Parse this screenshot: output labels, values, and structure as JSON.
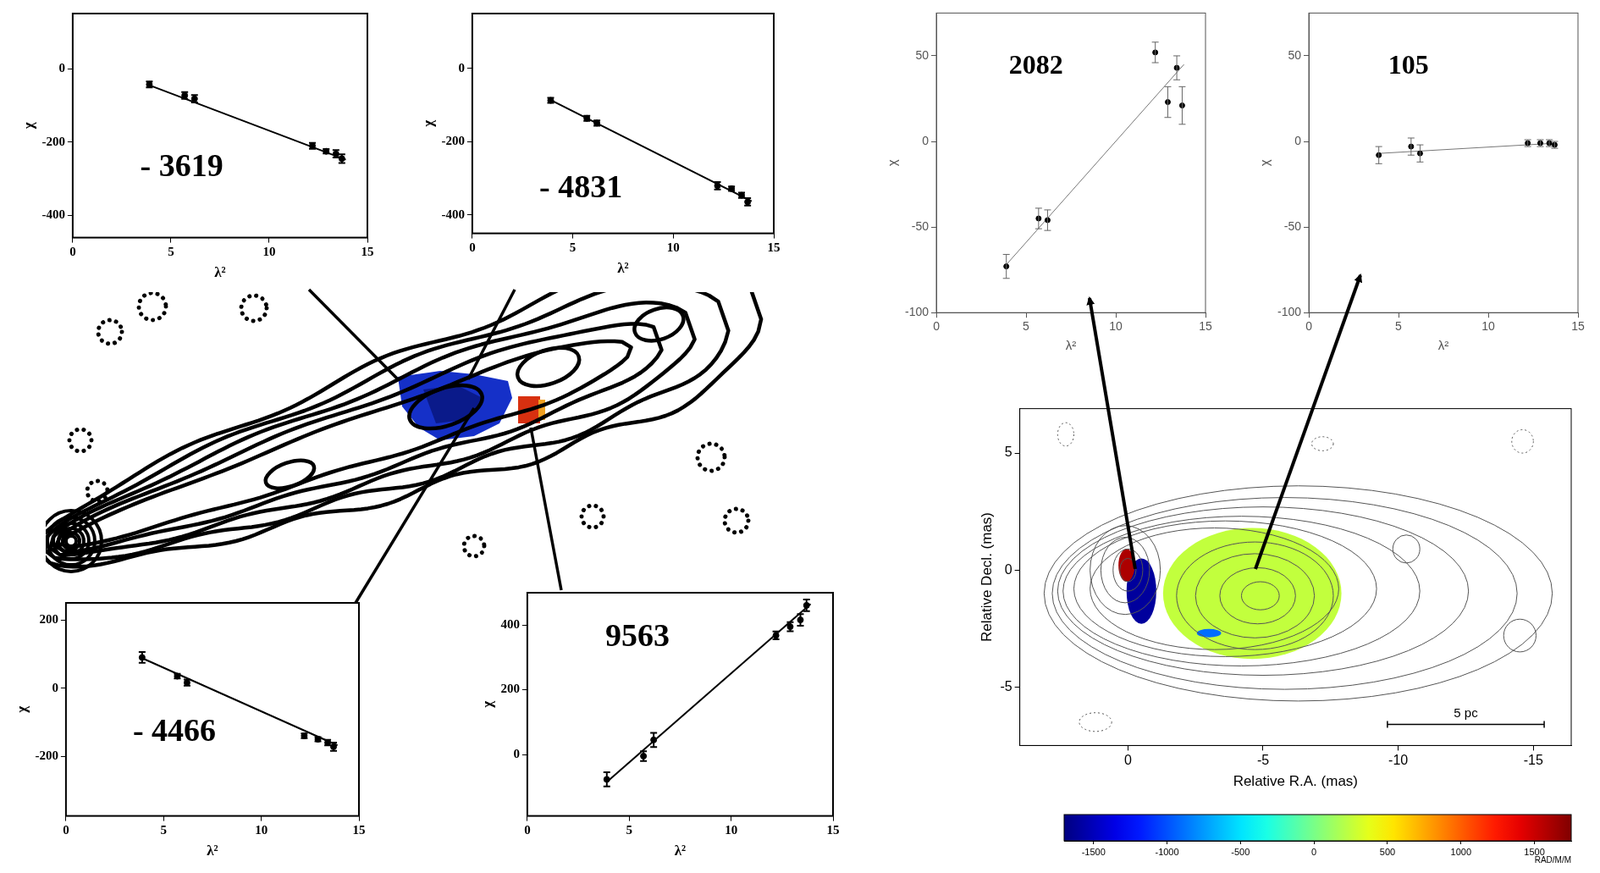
{
  "chart_data": [
    {
      "type": "scatter",
      "annotation": "- 3619",
      "xlabel": "λ²",
      "ylabel": "χ",
      "x": [
        3.9,
        5.7,
        6.2,
        12.2,
        12.9,
        13.4,
        13.7
      ],
      "values": [
        -43,
        -73,
        -82,
        -210,
        -225,
        -232,
        -245
      ],
      "errors": [
        8,
        9,
        10,
        8,
        6,
        10,
        12
      ],
      "fit": {
        "x": [
          3.9,
          13.9
        ],
        "values": [
          -45,
          -248
        ]
      },
      "xlim": [
        0,
        15
      ],
      "xticks": [
        0,
        5,
        10,
        15
      ],
      "ylim": [
        -460,
        150
      ],
      "yticks": [
        -400,
        -200,
        0
      ],
      "grid": false,
      "color": "#000000"
    },
    {
      "type": "scatter",
      "annotation": "- 4831",
      "xlabel": "λ²",
      "ylabel": "χ",
      "x": [
        3.9,
        5.7,
        6.2,
        12.2,
        12.9,
        13.4,
        13.7
      ],
      "values": [
        -87,
        -136,
        -149,
        -320,
        -328,
        -346,
        -364
      ],
      "errors": [
        7,
        7,
        7,
        10,
        6,
        7,
        10
      ],
      "fit": {
        "x": [
          3.9,
          13.9
        ],
        "values": [
          -86,
          -362
        ]
      },
      "xlim": [
        0,
        15
      ],
      "xticks": [
        0,
        5,
        10,
        15
      ],
      "ylim": [
        -450,
        150
      ],
      "yticks": [
        -400,
        -200,
        0
      ],
      "grid": false,
      "color": "#000000"
    },
    {
      "type": "scatter",
      "annotation": "- 4466",
      "xlabel": "λ²",
      "ylabel": "χ",
      "x": [
        3.9,
        5.7,
        6.2,
        12.2,
        12.9,
        13.4,
        13.7
      ],
      "values": [
        90,
        35,
        16,
        -140,
        -150,
        -160,
        -172
      ],
      "errors": [
        16,
        7,
        9,
        7,
        6,
        8,
        12
      ],
      "fit": {
        "x": [
          3.9,
          13.9
        ],
        "values": [
          88,
          -168
        ]
      },
      "xlim": [
        0,
        15
      ],
      "xticks": [
        0,
        5,
        10,
        15
      ],
      "ylim": [
        -375,
        250
      ],
      "yticks": [
        -200,
        0,
        200
      ],
      "grid": false,
      "color": "#000000"
    },
    {
      "type": "scatter",
      "annotation": "9563",
      "xlabel": "λ²",
      "ylabel": "χ",
      "x": [
        3.9,
        5.7,
        6.2,
        12.2,
        12.9,
        13.4,
        13.7
      ],
      "values": [
        -77,
        -5,
        45,
        368,
        395,
        416,
        461
      ],
      "errors": [
        22,
        15,
        22,
        12,
        14,
        18,
        18
      ],
      "fit": {
        "x": [
          3.9,
          13.9
        ],
        "values": [
          -85,
          465
        ]
      },
      "xlim": [
        0,
        15
      ],
      "xticks": [
        0,
        5,
        10,
        15
      ],
      "ylim": [
        -190,
        500
      ],
      "yticks": [
        0,
        200,
        400
      ],
      "grid": false,
      "color": "#000000"
    },
    {
      "type": "scatter",
      "annotation": "2082",
      "xlabel": "λ²",
      "ylabel": "χ",
      "x": [
        3.9,
        5.7,
        6.2,
        12.2,
        12.9,
        13.4,
        13.7
      ],
      "values": [
        -73,
        -45,
        -46,
        52,
        23,
        43,
        21
      ],
      "errors": [
        7,
        6,
        6,
        6,
        9,
        7,
        11
      ],
      "fit": {
        "x": [
          3.9,
          13.8
        ],
        "values": [
          -72,
          45
        ]
      },
      "xlim": [
        0,
        15
      ],
      "xticks": [
        0,
        5,
        10,
        15
      ],
      "ylim": [
        -100,
        75
      ],
      "yticks": [
        -100,
        -50,
        0,
        50
      ],
      "grid": false,
      "color": "#000000"
    },
    {
      "type": "scatter",
      "annotation": "105",
      "xlabel": "λ²",
      "ylabel": "χ",
      "x": [
        3.9,
        5.7,
        6.2,
        12.2,
        12.9,
        13.4,
        13.7
      ],
      "values": [
        -8,
        -3,
        -7,
        -1,
        -1,
        -1,
        -2
      ],
      "errors": [
        5,
        5,
        5,
        2,
        2,
        2,
        2
      ],
      "fit": {
        "x": [
          3.9,
          13.8
        ],
        "values": [
          -7,
          -1
        ]
      },
      "xlim": [
        0,
        15
      ],
      "xticks": [
        0,
        5,
        10,
        15
      ],
      "ylim": [
        -100,
        75
      ],
      "yticks": [
        -100,
        -50,
        0,
        50
      ],
      "grid": false,
      "color": "#000000"
    },
    {
      "type": "contour_map",
      "xlabel": "Relative R.A. (mas)",
      "ylabel": "Relative Decl. (mas)",
      "xlim": [
        4,
        -16.4
      ],
      "xticks": [
        0,
        -5,
        -10,
        -15
      ],
      "ylim": [
        -7.5,
        6.9
      ],
      "yticks": [
        -5,
        0,
        5
      ],
      "grid": false,
      "color": "#555555",
      "rm_patches": [
        {
          "center": [
            -4.6,
            -1.0
          ],
          "radii": [
            3.3,
            2.8
          ],
          "value": 250
        },
        {
          "center": [
            -0.5,
            -0.9
          ],
          "radii": [
            0.55,
            1.4
          ],
          "value": -1600
        },
        {
          "center": [
            0.05,
            0.2
          ],
          "radii": [
            0.3,
            0.7
          ],
          "value": 1600
        },
        {
          "center": [
            -3.0,
            -2.7
          ],
          "radii": [
            0.45,
            0.18
          ],
          "value": -900
        }
      ],
      "contours": [
        {
          "center": [
            -6.3,
            -1.0
          ],
          "radii": [
            9.4,
            4.6
          ]
        },
        {
          "center": [
            -5.8,
            -1.0
          ],
          "radii": [
            8.6,
            4.1
          ]
        },
        {
          "center": [
            -5.0,
            -0.9
          ],
          "radii": [
            7.6,
            3.6
          ]
        },
        {
          "center": [
            -4.2,
            -0.9
          ],
          "radii": [
            6.6,
            3.2
          ]
        },
        {
          "center": [
            -3.6,
            -0.8
          ],
          "radii": [
            5.6,
            2.9
          ]
        },
        {
          "center": [
            -3.2,
            -0.8
          ],
          "radii": [
            4.6,
            2.6
          ]
        },
        {
          "center": [
            -4.7,
            -1.1
          ],
          "radii": [
            2.9,
            2.3
          ]
        },
        {
          "center": [
            -4.7,
            -1.1
          ],
          "radii": [
            2.2,
            1.8
          ]
        },
        {
          "center": [
            -4.8,
            -1.1
          ],
          "radii": [
            1.4,
            1.2
          ]
        },
        {
          "center": [
            -4.9,
            -1.1
          ],
          "radii": [
            0.7,
            0.6
          ]
        },
        {
          "center": [
            0.1,
            0.0
          ],
          "radii": [
            1.3,
            1.9
          ]
        },
        {
          "center": [
            0.1,
            0.0
          ],
          "radii": [
            0.9,
            1.4
          ]
        },
        {
          "center": [
            0.0,
            0.0
          ],
          "radii": [
            0.55,
            0.9
          ]
        },
        {
          "center": [
            0.0,
            0.0
          ],
          "radii": [
            0.3,
            0.5
          ]
        },
        {
          "center": [
            -14.5,
            -2.8
          ],
          "radii": [
            0.6,
            0.7
          ]
        },
        {
          "center": [
            -10.3,
            0.9
          ],
          "radii": [
            0.5,
            0.6
          ]
        }
      ],
      "negative_contours": [
        {
          "center": [
            2.3,
            5.8
          ],
          "radii": [
            0.3,
            0.5
          ]
        },
        {
          "center": [
            -7.2,
            5.4
          ],
          "radii": [
            0.4,
            0.3
          ]
        },
        {
          "center": [
            -14.6,
            5.5
          ],
          "radii": [
            0.4,
            0.5
          ]
        },
        {
          "center": [
            1.2,
            -6.5
          ],
          "radii": [
            0.6,
            0.4
          ]
        }
      ],
      "scale_bar": {
        "x": [
          -9.6,
          -15.4
        ],
        "y": -6.6,
        "label": "5 pc"
      },
      "colorbar": {
        "range": [
          -1700,
          1750
        ],
        "ticks": [
          -1500,
          -1000,
          -500,
          0,
          500,
          1000,
          1500
        ],
        "label": "RAD/M/M"
      }
    }
  ]
}
